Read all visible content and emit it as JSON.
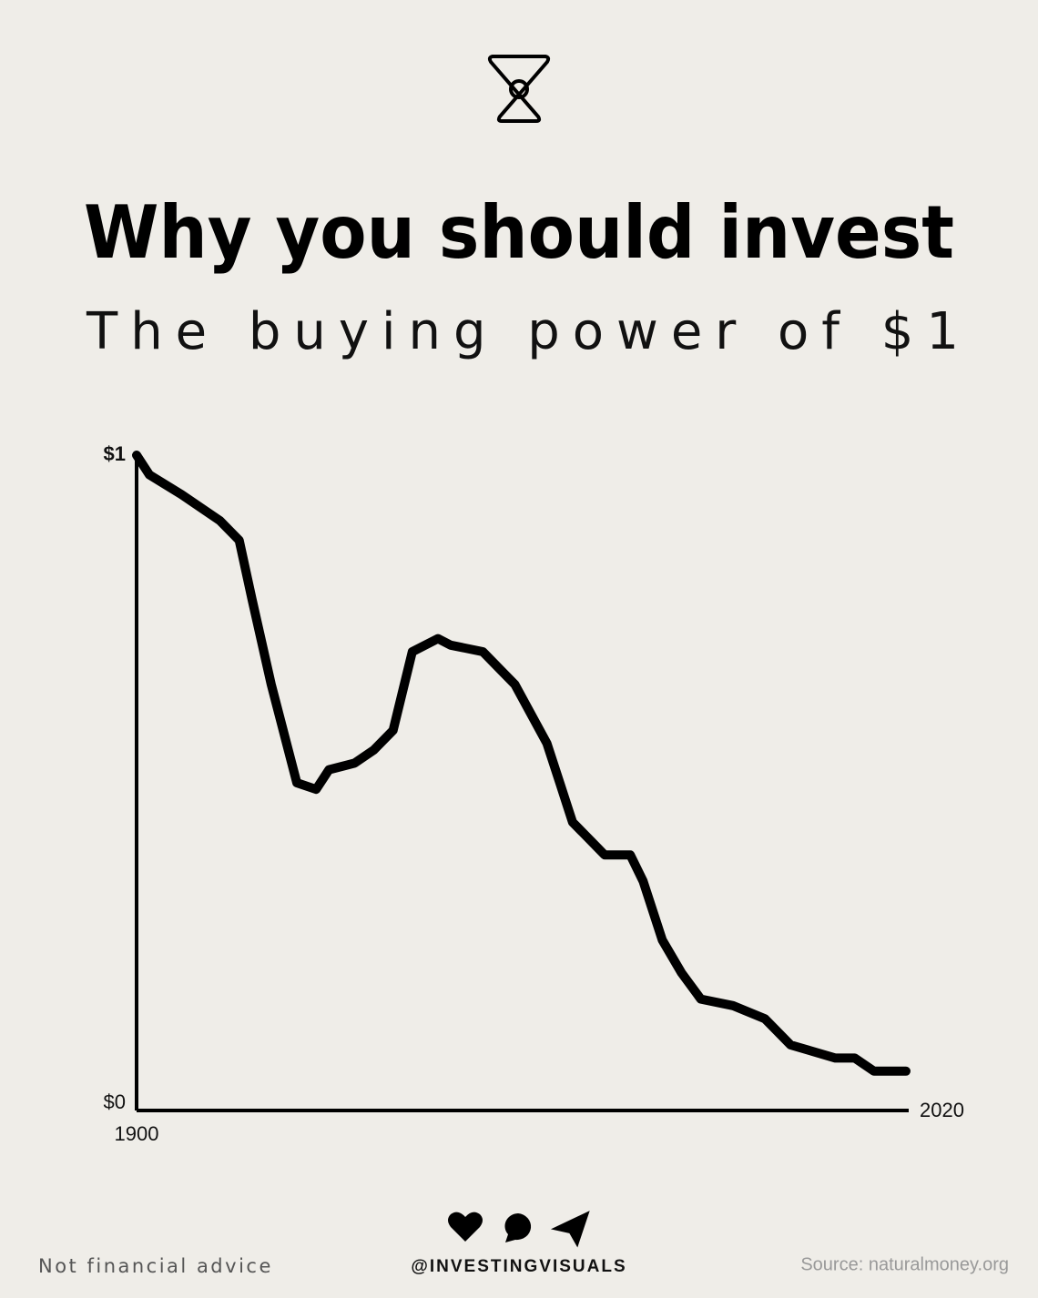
{
  "header": {
    "title": "Why you should invest",
    "subtitle": "The buying power of $1"
  },
  "chart_data": {
    "type": "line",
    "color": "#000000",
    "x": [
      1900,
      1902,
      1907,
      1913,
      1916,
      1918,
      1921,
      1925,
      1928,
      1930,
      1934,
      1937,
      1940,
      1943,
      1947,
      1949,
      1954,
      1957,
      1959,
      1964,
      1966,
      1968,
      1972,
      1973,
      1977,
      1979,
      1982,
      1985,
      1988,
      1993,
      1998,
      2002,
      2009,
      2012,
      2015,
      2020
    ],
    "values": [
      1.0,
      0.97,
      0.94,
      0.9,
      0.87,
      0.78,
      0.65,
      0.5,
      0.49,
      0.52,
      0.53,
      0.55,
      0.58,
      0.7,
      0.72,
      0.71,
      0.7,
      0.67,
      0.65,
      0.56,
      0.5,
      0.44,
      0.4,
      0.39,
      0.39,
      0.35,
      0.26,
      0.21,
      0.17,
      0.16,
      0.14,
      0.1,
      0.08,
      0.08,
      0.06,
      0.06
    ],
    "xlim": [
      1900,
      2020
    ],
    "ylim": [
      0,
      1
    ],
    "xticks": [
      1900,
      2020
    ],
    "yticks": [
      {
        "value": 0,
        "label": "$0"
      },
      {
        "value": 1,
        "label": "$1"
      }
    ]
  },
  "footer": {
    "disclaimer": "Not financial advice",
    "handle": "@INVESTINGVISUALS",
    "source": "Source: naturalmoney.org"
  }
}
